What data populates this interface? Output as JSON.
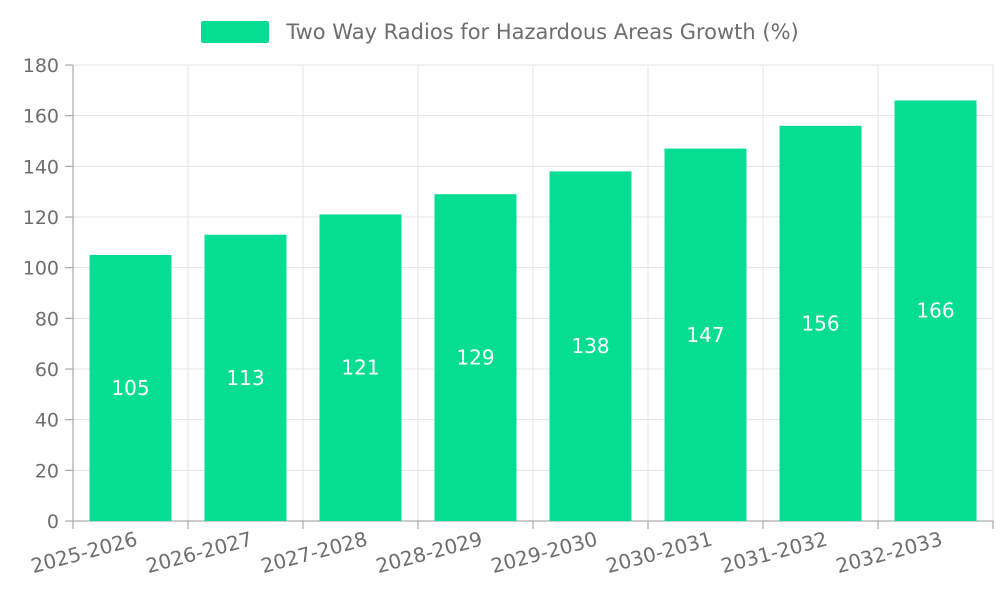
{
  "legend": {
    "items": [
      {
        "label": "Two Way Radios for Hazardous Areas Growth (%)",
        "swatch_color": "#05DD92"
      }
    ]
  },
  "chart_data": {
    "type": "bar",
    "title": "Two Way Radios for Hazardous Areas Growth (%)",
    "categories": [
      "2025-2026",
      "2026-2027",
      "2027-2028",
      "2028-2029",
      "2029-2030",
      "2030-2031",
      "2031-2032",
      "2032-2033"
    ],
    "values": [
      105,
      113,
      121,
      129,
      138,
      147,
      156,
      166
    ],
    "xlabel": "",
    "ylabel": "",
    "ylim": [
      0,
      180
    ],
    "yticks": [
      0,
      20,
      40,
      60,
      80,
      100,
      120,
      140,
      160,
      180
    ],
    "grid": true,
    "legend_position": "top-center",
    "bar_label_position": "inside-center",
    "colors": {
      "bar": "#05DD92",
      "bar_label": "#FFFFFF",
      "axis_line": "#999999",
      "grid_line": "#E3E3E3",
      "tick_text": "#6E6E6E",
      "title_text": "#6E6E6E",
      "background": "#FFFFFF"
    }
  }
}
